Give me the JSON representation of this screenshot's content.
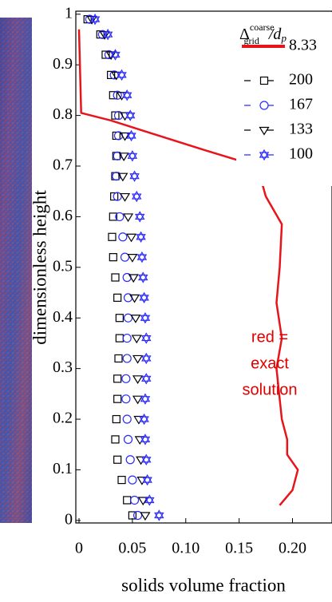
{
  "chart_data": {
    "type": "line",
    "x_label": "solids volume fraction",
    "y_label": "dimensionless height",
    "xlim": [
      -0.003,
      0.237
    ],
    "ylim": [
      -0.005,
      1.006
    ],
    "xticks": [
      0,
      0.05,
      {
        "value": 0.1,
        "label": "0.10"
      },
      0.15,
      {
        "value": 0.2,
        "label": "0.20"
      }
    ],
    "yticks": [
      0,
      0.1,
      0.2,
      0.3,
      0.4,
      0.5,
      0.6,
      0.7,
      0.8,
      0.9,
      1
    ],
    "legend_title": {
      "symbol": "Δ",
      "sup": "coarse",
      "sub": "grid",
      "rest": "/d",
      "rest_sub": "p"
    },
    "annotation": [
      "red =",
      "exact",
      "solution"
    ],
    "series": [
      {
        "name": "8.33",
        "color": "#e8141c",
        "marker": "none",
        "x": [
          0,
          0.002,
          0.03,
          0.06,
          0.12,
          0.167,
          0.175,
          0.19,
          0.188,
          0.185,
          0.19,
          0.185,
          0.19,
          0.195,
          0.195,
          0.205,
          0.2,
          0.188
        ],
        "values": [
          0.97,
          0.805,
          0.79,
          0.77,
          0.73,
          0.7,
          0.64,
          0.585,
          0.5,
          0.43,
          0.36,
          0.3,
          0.2,
          0.16,
          0.13,
          0.1,
          0.06,
          0.03
        ]
      },
      {
        "name": "200",
        "color": "#000000",
        "marker": "square",
        "x": [
          0.008,
          0.02,
          0.025,
          0.03,
          0.032,
          0.034,
          0.035,
          0.035,
          0.034,
          0.033,
          0.032,
          0.031,
          0.032,
          0.034,
          0.036,
          0.038,
          0.038,
          0.037,
          0.036,
          0.036,
          0.035,
          0.034,
          0.036,
          0.04,
          0.045,
          0.05
        ],
        "values": [
          0.99,
          0.96,
          0.92,
          0.88,
          0.84,
          0.8,
          0.76,
          0.72,
          0.68,
          0.64,
          0.6,
          0.56,
          0.52,
          0.48,
          0.44,
          0.4,
          0.36,
          0.32,
          0.28,
          0.24,
          0.2,
          0.16,
          0.12,
          0.08,
          0.04,
          0.01
        ]
      },
      {
        "name": "167",
        "color": "#2a2aff",
        "marker": "circle",
        "x": [
          0.01,
          0.022,
          0.028,
          0.033,
          0.036,
          0.037,
          0.037,
          0.036,
          0.035,
          0.036,
          0.038,
          0.041,
          0.043,
          0.045,
          0.046,
          0.046,
          0.045,
          0.045,
          0.044,
          0.044,
          0.045,
          0.046,
          0.048,
          0.05,
          0.052,
          0.055
        ],
        "values": [
          0.99,
          0.96,
          0.92,
          0.88,
          0.84,
          0.8,
          0.76,
          0.72,
          0.68,
          0.64,
          0.6,
          0.56,
          0.52,
          0.48,
          0.44,
          0.4,
          0.36,
          0.32,
          0.28,
          0.24,
          0.2,
          0.16,
          0.12,
          0.08,
          0.04,
          0.01
        ]
      },
      {
        "name": "133",
        "color": "#000000",
        "marker": "triangle-down",
        "x": [
          0.012,
          0.024,
          0.03,
          0.035,
          0.04,
          0.043,
          0.043,
          0.042,
          0.041,
          0.043,
          0.046,
          0.049,
          0.05,
          0.051,
          0.052,
          0.053,
          0.054,
          0.055,
          0.055,
          0.055,
          0.056,
          0.057,
          0.058,
          0.059,
          0.06,
          0.062
        ],
        "values": [
          0.99,
          0.96,
          0.92,
          0.88,
          0.84,
          0.8,
          0.76,
          0.72,
          0.68,
          0.64,
          0.6,
          0.56,
          0.52,
          0.48,
          0.44,
          0.4,
          0.36,
          0.32,
          0.28,
          0.24,
          0.2,
          0.16,
          0.12,
          0.08,
          0.04,
          0.01
        ]
      },
      {
        "name": "100",
        "color": "#2a2aff",
        "marker": "star",
        "x": [
          0.015,
          0.027,
          0.034,
          0.04,
          0.045,
          0.048,
          0.049,
          0.05,
          0.052,
          0.054,
          0.057,
          0.058,
          0.059,
          0.06,
          0.061,
          0.062,
          0.063,
          0.063,
          0.063,
          0.062,
          0.061,
          0.062,
          0.063,
          0.064,
          0.066,
          0.075
        ],
        "values": [
          0.99,
          0.96,
          0.92,
          0.88,
          0.84,
          0.8,
          0.76,
          0.72,
          0.68,
          0.64,
          0.6,
          0.56,
          0.52,
          0.48,
          0.44,
          0.4,
          0.36,
          0.32,
          0.28,
          0.24,
          0.2,
          0.16,
          0.12,
          0.08,
          0.04,
          0.01
        ]
      }
    ]
  }
}
